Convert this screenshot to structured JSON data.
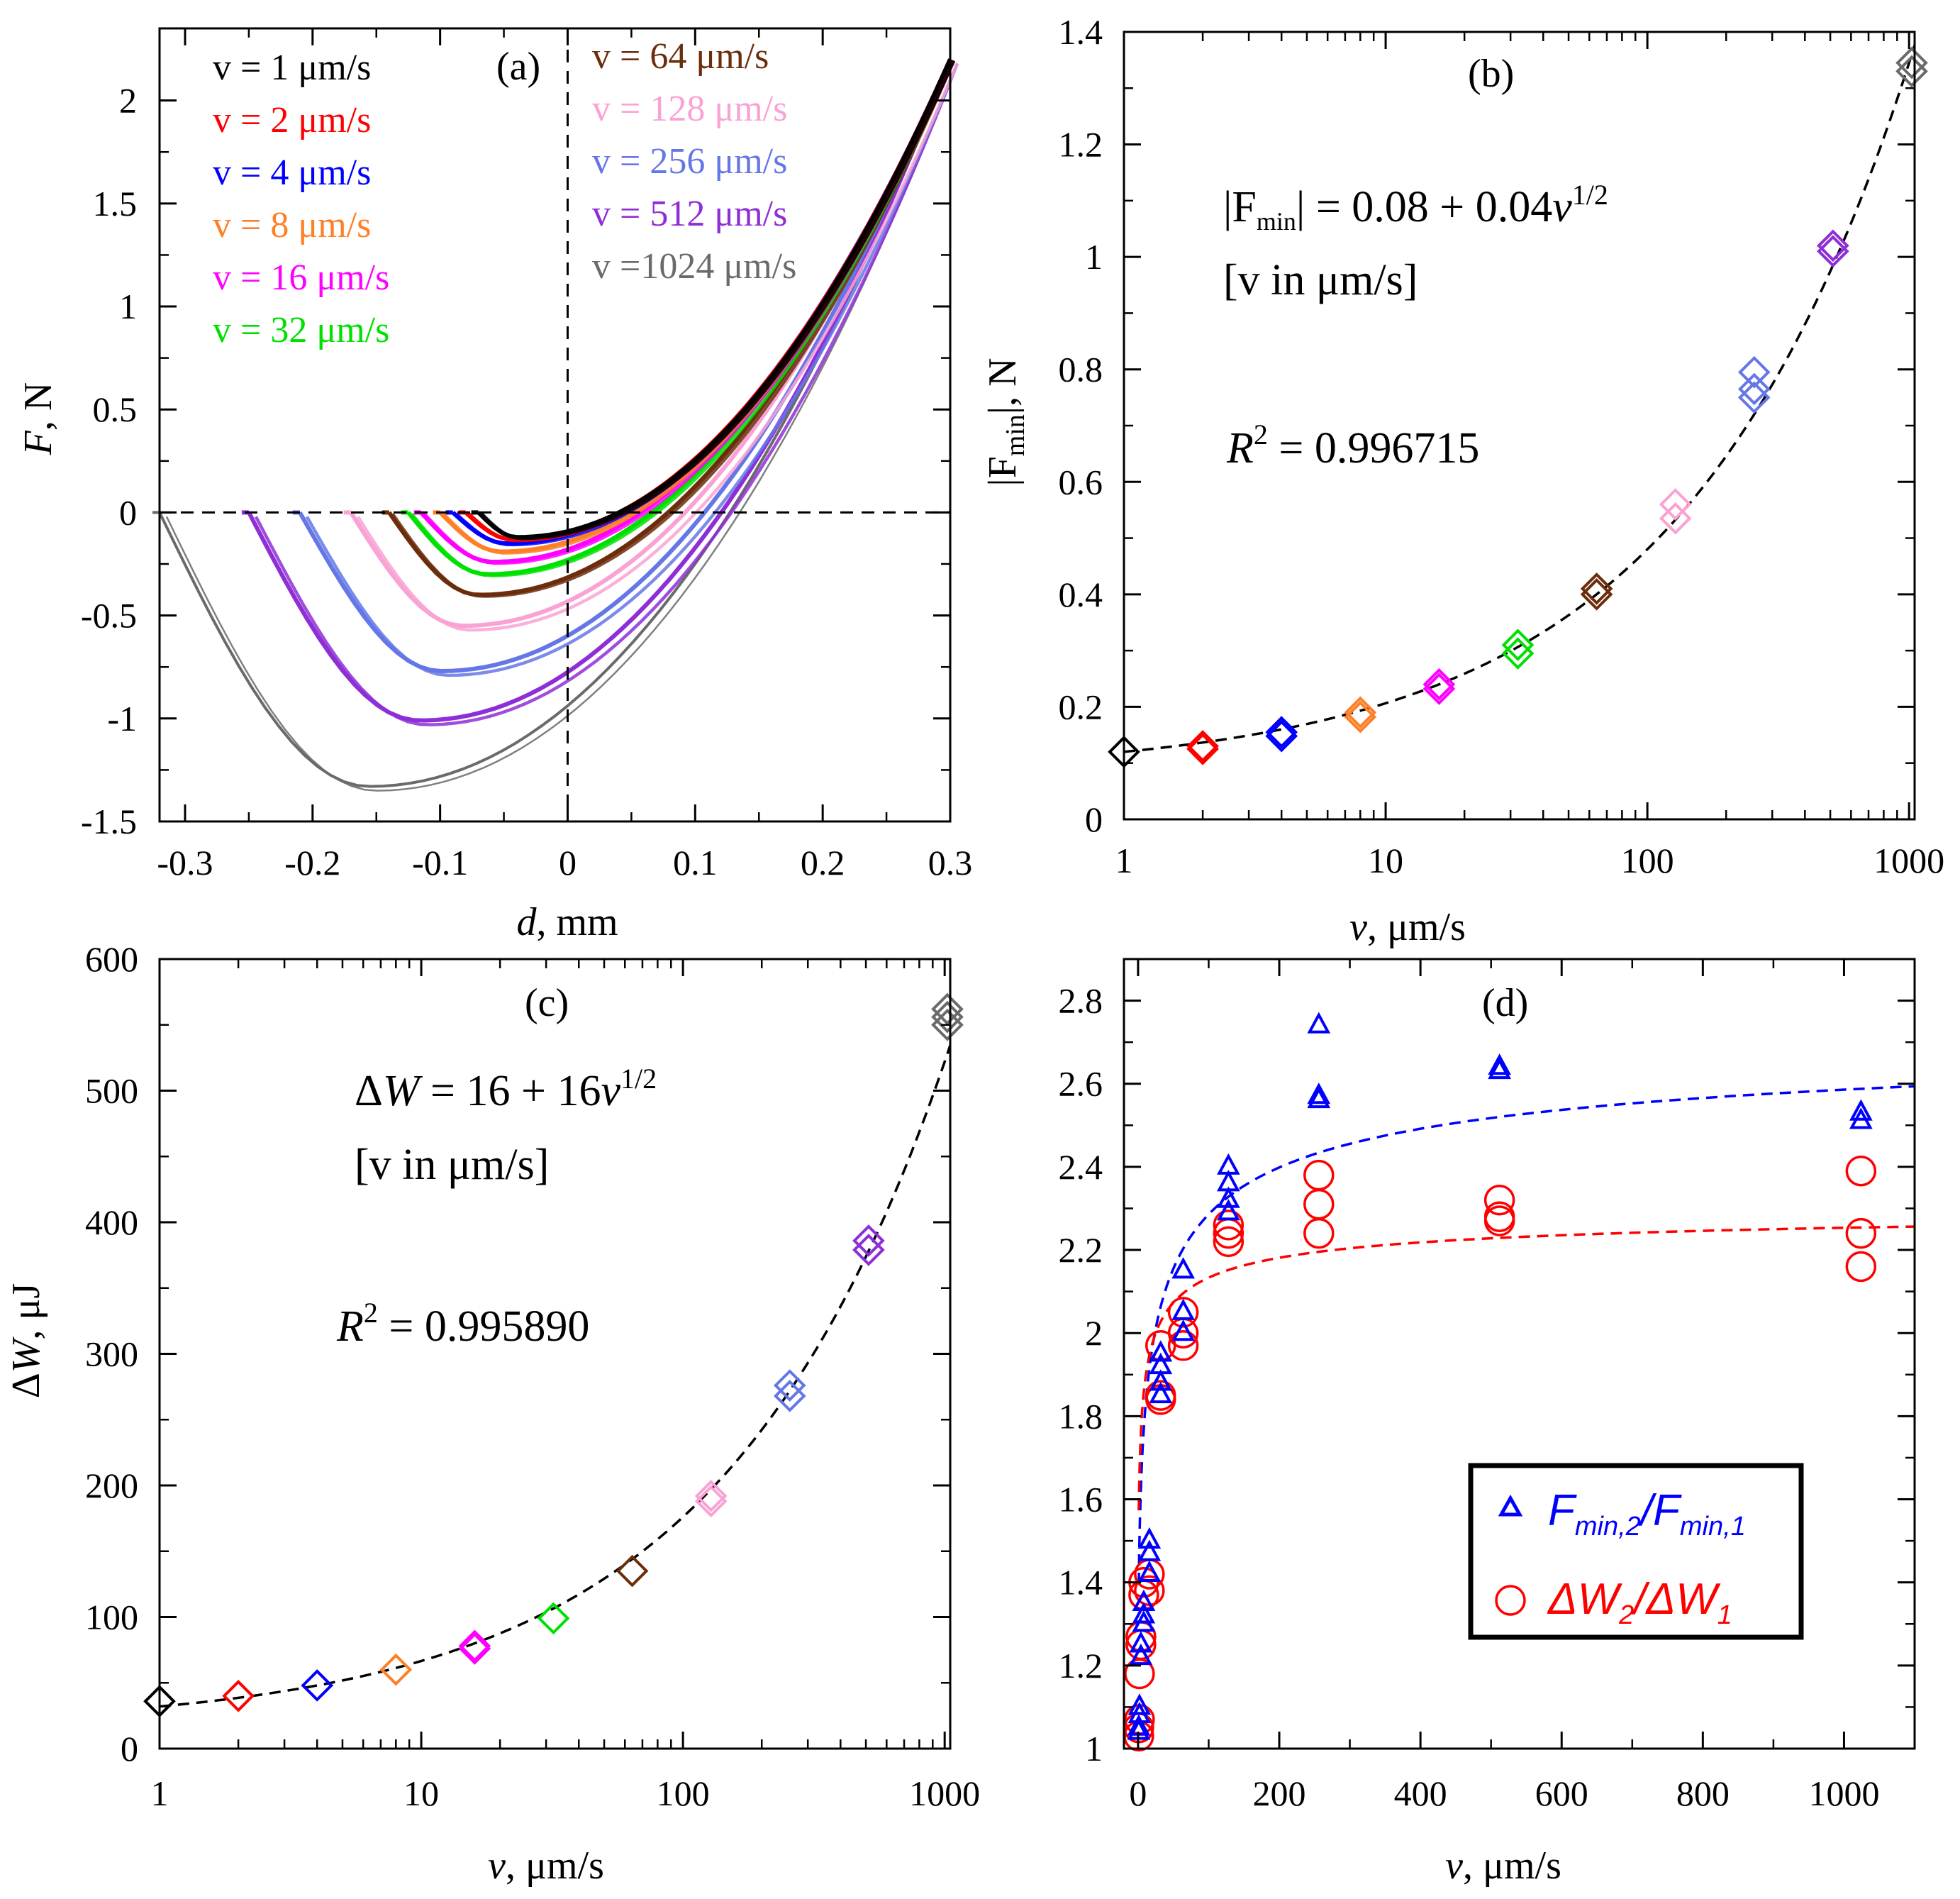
{
  "chart_data": [
    {
      "type": "line",
      "panel_label": "(a)",
      "xlabel_var": "d",
      "xlabel_unit": ", mm",
      "ylabel_var": "F",
      "ylabel_unit": ", N",
      "xlim": [
        -0.32,
        0.3
      ],
      "ylim": [
        -1.5,
        2.35
      ],
      "xticks": [
        -0.3,
        -0.2,
        -0.1,
        0,
        0.1,
        0.2,
        0.3
      ],
      "xtick_labels": [
        "-0.3",
        "-0.2",
        "-0.1",
        "0",
        "0.1",
        "0.2",
        "0.3"
      ],
      "yticks": [
        -1.5,
        -1,
        -0.5,
        0,
        0.5,
        1,
        1.5,
        2
      ],
      "ytick_labels": [
        "-1.5",
        "-1",
        "-0.5",
        "0",
        "0.5",
        "1",
        "1.5",
        "2"
      ],
      "legend": [
        {
          "label": "v = 1 μm/s",
          "color": "#000000"
        },
        {
          "label": "v = 2 μm/s",
          "color": "#ff0000"
        },
        {
          "label": "v = 4 μm/s",
          "color": "#0000ff"
        },
        {
          "label": "v = 8 μm/s",
          "color": "#ff7f27"
        },
        {
          "label": "v = 16 μm/s",
          "color": "#ff00ff"
        },
        {
          "label": "v = 32 μm/s",
          "color": "#00e000"
        },
        {
          "label": "v = 64 μm/s",
          "color": "#6b2d0c"
        },
        {
          "label": "v = 128 μm/s",
          "color": "#f9a2d4"
        },
        {
          "label": "v = 256 μm/s",
          "color": "#6577e6"
        },
        {
          "label": "v = 512 μm/s",
          "color": "#8e2ed6"
        },
        {
          "label": "v =1024 μm/s",
          "color": "#6a6a6a"
        }
      ],
      "series": [
        {
          "name": "v = 1 μm/s",
          "color": "#000000",
          "d_start": -0.07,
          "f_min": -0.12
        },
        {
          "name": "v = 2 μm/s",
          "color": "#ff0000",
          "d_start": -0.08,
          "f_min": -0.13
        },
        {
          "name": "v = 4 μm/s",
          "color": "#0000ff",
          "d_start": -0.09,
          "f_min": -0.15
        },
        {
          "name": "v = 8 μm/s",
          "color": "#ff7f27",
          "d_start": -0.1,
          "f_min": -0.19
        },
        {
          "name": "v = 16 μm/s",
          "color": "#ff00ff",
          "d_start": -0.115,
          "f_min": -0.24
        },
        {
          "name": "v = 32 μm/s",
          "color": "#00e000",
          "d_start": -0.125,
          "f_min": -0.3
        },
        {
          "name": "v = 64 μm/s",
          "color": "#6b2d0c",
          "d_start": -0.14,
          "f_min": -0.4
        },
        {
          "name": "v = 128 μm/s",
          "color": "#f9a2d4",
          "d_start": -0.17,
          "f_min": -0.55
        },
        {
          "name": "v = 256 μm/s",
          "color": "#6577e6",
          "d_start": -0.21,
          "f_min": -0.77
        },
        {
          "name": "v = 512 μm/s",
          "color": "#8e2ed6",
          "d_start": -0.25,
          "f_min": -1.01
        },
        {
          "name": "v =1024 μm/s",
          "color": "#6a6a6a",
          "d_start": -0.32,
          "f_min": -1.33
        }
      ]
    },
    {
      "type": "scatter",
      "panel_label": "(b)",
      "xscale": "log",
      "xlim": [
        1,
        1050
      ],
      "ylim": [
        0,
        1.4
      ],
      "xticks": [
        1,
        10,
        100,
        1000
      ],
      "xtick_labels": [
        "1",
        "10",
        "100",
        "1000"
      ],
      "yticks": [
        0,
        0.2,
        0.4,
        0.6,
        0.8,
        1,
        1.2,
        1.4
      ],
      "ytick_labels": [
        "0",
        "0.2",
        "0.4",
        "0.6",
        "0.8",
        "1",
        "1.2",
        "1.4"
      ],
      "xlabel_var": "v",
      "xlabel_unit": ", μm/s",
      "ylabel_pre": "|F",
      "ylabel_sub": "min",
      "ylabel_post": "|, N",
      "eq_pre": "|F",
      "eq_sub": "min",
      "eq_mid": "| = 0.08 + 0.04",
      "eq_var": "v",
      "eq_sup": "1/2",
      "units_note": "[v in μm/s]",
      "r2_var": "R",
      "r2_sup": "2",
      "r2_val": " = 0.996715",
      "fit": {
        "a": 0.08,
        "b": 0.04
      },
      "points": [
        {
          "x": 1,
          "y": 0.12,
          "color": "#000000"
        },
        {
          "x": 2,
          "y": 0.13,
          "color": "#ff0000"
        },
        {
          "x": 2,
          "y": 0.125,
          "color": "#ff0000"
        },
        {
          "x": 4,
          "y": 0.155,
          "color": "#0000ff"
        },
        {
          "x": 4,
          "y": 0.148,
          "color": "#0000ff"
        },
        {
          "x": 8,
          "y": 0.19,
          "color": "#ff7f27"
        },
        {
          "x": 8,
          "y": 0.182,
          "color": "#ff7f27"
        },
        {
          "x": 16,
          "y": 0.24,
          "color": "#ff00ff"
        },
        {
          "x": 16,
          "y": 0.232,
          "color": "#ff00ff"
        },
        {
          "x": 32,
          "y": 0.31,
          "color": "#00e000"
        },
        {
          "x": 32,
          "y": 0.295,
          "color": "#00e000"
        },
        {
          "x": 64,
          "y": 0.41,
          "color": "#6b2d0c"
        },
        {
          "x": 64,
          "y": 0.4,
          "color": "#6b2d0c"
        },
        {
          "x": 128,
          "y": 0.56,
          "color": "#f9a2d4"
        },
        {
          "x": 128,
          "y": 0.535,
          "color": "#f9a2d4"
        },
        {
          "x": 256,
          "y": 0.795,
          "color": "#6577e6"
        },
        {
          "x": 256,
          "y": 0.765,
          "color": "#6577e6"
        },
        {
          "x": 256,
          "y": 0.75,
          "color": "#6577e6"
        },
        {
          "x": 512,
          "y": 1.02,
          "color": "#8e2ed6"
        },
        {
          "x": 512,
          "y": 1.01,
          "color": "#8e2ed6"
        },
        {
          "x": 1024,
          "y": 1.345,
          "color": "#6a6a6a"
        },
        {
          "x": 1024,
          "y": 1.33,
          "color": "#6a6a6a"
        }
      ]
    },
    {
      "type": "scatter",
      "panel_label": "(c)",
      "xscale": "log",
      "xlim": [
        1,
        1050
      ],
      "ylim": [
        0,
        600
      ],
      "xticks": [
        1,
        10,
        100,
        1000
      ],
      "xtick_labels": [
        "1",
        "10",
        "100",
        "1000"
      ],
      "yticks": [
        0,
        100,
        200,
        300,
        400,
        500,
        600
      ],
      "ytick_labels": [
        "0",
        "100",
        "200",
        "300",
        "400",
        "500",
        "600"
      ],
      "xlabel_var": "v",
      "xlabel_unit": ", μm/s",
      "ylabel_pre": "Δ",
      "ylabel_var": "W",
      "ylabel_unit": ", μJ",
      "eq_pre": "Δ",
      "eq_var": "W",
      "eq_mid": " = 16 + 16",
      "eq_var2": "v",
      "eq_sup": "1/2",
      "units_note": "[v in μm/s]",
      "r2_var": "R",
      "r2_sup": "2",
      "r2_val": " = 0.995890",
      "fit": {
        "a": 16,
        "b": 16
      },
      "points": [
        {
          "x": 1,
          "y": 36,
          "color": "#000000"
        },
        {
          "x": 2,
          "y": 40,
          "color": "#ff0000"
        },
        {
          "x": 4,
          "y": 48,
          "color": "#0000ff"
        },
        {
          "x": 8,
          "y": 60,
          "color": "#ff7f27"
        },
        {
          "x": 16,
          "y": 78,
          "color": "#ff00ff"
        },
        {
          "x": 16,
          "y": 76,
          "color": "#ff00ff"
        },
        {
          "x": 32,
          "y": 99,
          "color": "#00e000"
        },
        {
          "x": 64,
          "y": 135,
          "color": "#6b2d0c"
        },
        {
          "x": 128,
          "y": 192,
          "color": "#f9a2d4"
        },
        {
          "x": 128,
          "y": 188,
          "color": "#f9a2d4"
        },
        {
          "x": 256,
          "y": 276,
          "color": "#6577e6"
        },
        {
          "x": 256,
          "y": 268,
          "color": "#6577e6"
        },
        {
          "x": 512,
          "y": 386,
          "color": "#8e2ed6"
        },
        {
          "x": 512,
          "y": 379,
          "color": "#8e2ed6"
        },
        {
          "x": 1024,
          "y": 562,
          "color": "#6a6a6a"
        },
        {
          "x": 1024,
          "y": 556,
          "color": "#6a6a6a"
        },
        {
          "x": 1024,
          "y": 550,
          "color": "#6a6a6a"
        }
      ]
    },
    {
      "type": "scatter",
      "panel_label": "(d)",
      "xlim": [
        -20,
        1100
      ],
      "ylim": [
        1,
        2.9
      ],
      "xticks": [
        0,
        200,
        400,
        600,
        800,
        1000
      ],
      "xtick_labels": [
        "0",
        "200",
        "400",
        "600",
        "800",
        "1000"
      ],
      "yticks": [
        1,
        1.2,
        1.4,
        1.6,
        1.8,
        2,
        2.2,
        2.4,
        2.6,
        2.8
      ],
      "ytick_labels": [
        "1",
        "1.2",
        "1.4",
        "1.6",
        "1.8",
        "2",
        "2.2",
        "2.4",
        "2.6",
        "2.8"
      ],
      "xlabel_var": "v",
      "xlabel_unit": ", μm/s",
      "legend": {
        "s1_a": "F",
        "s1_a_sub": "min,2",
        "s1_slash": "/",
        "s1_b": "F",
        "s1_b_sub": "min,1",
        "s2_a": "ΔW",
        "s2_a_sub": "2",
        "s2_slash": "/",
        "s2_b": "ΔW",
        "s2_b_sub": "1"
      },
      "series": [
        {
          "name": "Fmin,2/Fmin,1",
          "marker": "triangle",
          "color": "#0000ff",
          "fit": {
            "a": 2.78,
            "b": 1.05,
            "c": 4.0
          },
          "points": [
            [
              1,
              1.05
            ],
            [
              1,
              1.04
            ],
            [
              2,
              1.1
            ],
            [
              2,
              1.08
            ],
            [
              4,
              1.22
            ],
            [
              4,
              1.25
            ],
            [
              8,
              1.32
            ],
            [
              8,
              1.3
            ],
            [
              8,
              1.35
            ],
            [
              16,
              1.42
            ],
            [
              16,
              1.47
            ],
            [
              16,
              1.5
            ],
            [
              32,
              1.85
            ],
            [
              32,
              1.88
            ],
            [
              32,
              1.92
            ],
            [
              32,
              1.95
            ],
            [
              64,
              2.0
            ],
            [
              64,
              2.05
            ],
            [
              64,
              2.15
            ],
            [
              128,
              2.29
            ],
            [
              128,
              2.32
            ],
            [
              128,
              2.36
            ],
            [
              128,
              2.4
            ],
            [
              256,
              2.56
            ],
            [
              256,
              2.57
            ],
            [
              256,
              2.74
            ],
            [
              512,
              2.63
            ],
            [
              512,
              2.64
            ],
            [
              1024,
              2.51
            ],
            [
              1024,
              2.53
            ]
          ]
        },
        {
          "name": "ΔW2/ΔW1",
          "marker": "circle",
          "color": "#ff0000",
          "fit": {
            "a": 2.32,
            "b": 1.2,
            "c": 2.0
          },
          "points": [
            [
              1,
              1.03
            ],
            [
              1,
              1.05
            ],
            [
              2,
              1.07
            ],
            [
              2,
              1.18
            ],
            [
              4,
              1.27
            ],
            [
              4,
              1.25
            ],
            [
              8,
              1.37
            ],
            [
              8,
              1.4
            ],
            [
              16,
              1.38
            ],
            [
              16,
              1.42
            ],
            [
              32,
              1.84
            ],
            [
              32,
              1.85
            ],
            [
              32,
              1.97
            ],
            [
              64,
              1.97
            ],
            [
              64,
              2.0
            ],
            [
              64,
              2.05
            ],
            [
              128,
              2.22
            ],
            [
              128,
              2.24
            ],
            [
              128,
              2.26
            ],
            [
              256,
              2.24
            ],
            [
              256,
              2.31
            ],
            [
              256,
              2.38
            ],
            [
              512,
              2.27
            ],
            [
              512,
              2.28
            ],
            [
              512,
              2.32
            ],
            [
              1024,
              2.16
            ],
            [
              1024,
              2.24
            ],
            [
              1024,
              2.39
            ]
          ]
        }
      ]
    }
  ]
}
